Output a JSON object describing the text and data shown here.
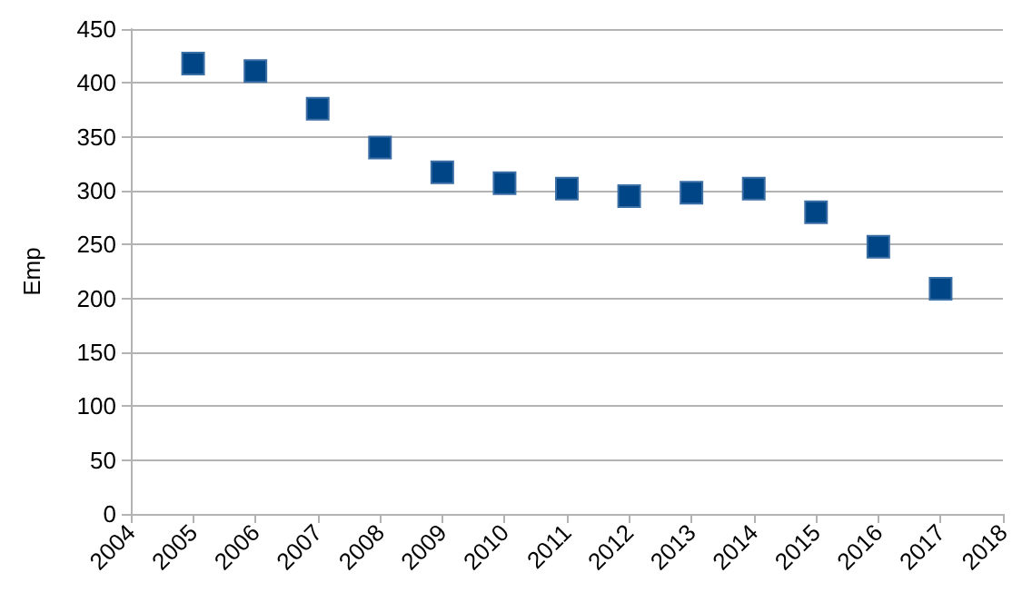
{
  "chart_data": {
    "type": "scatter",
    "ylabel": "Emp",
    "x": [
      2005,
      2006,
      2007,
      2008,
      2009,
      2010,
      2011,
      2012,
      2013,
      2014,
      2015,
      2016,
      2017
    ],
    "series": [
      {
        "color": "#004586",
        "values": [
          418,
          411,
          376,
          340,
          317,
          307,
          302,
          295,
          298,
          302,
          280,
          248,
          209
        ]
      }
    ],
    "xlim": [
      2004,
      2018
    ],
    "xticks": [
      2004,
      2005,
      2006,
      2007,
      2008,
      2009,
      2010,
      2011,
      2012,
      2013,
      2014,
      2015,
      2016,
      2017,
      2018
    ],
    "ylim": [
      0,
      450
    ],
    "yticks": [
      0,
      50,
      100,
      150,
      200,
      250,
      300,
      350,
      400,
      450
    ],
    "grid": "y",
    "marker": "square"
  }
}
